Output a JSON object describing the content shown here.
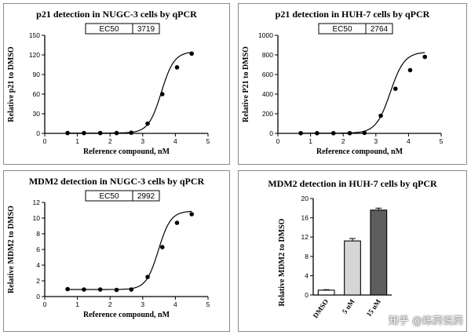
{
  "chart_data": [
    {
      "type": "line",
      "title": "p21 detection in NUGC-3 cells by qPCR",
      "xlabel": "Reference compound, nM",
      "ylabel": "Relative p21 to DMSO",
      "xlim": [
        0,
        5
      ],
      "ylim": [
        0,
        150
      ],
      "xticks": [
        "0",
        "1",
        "2",
        "3",
        "4",
        "5"
      ],
      "yticks": [
        "0",
        "30",
        "60",
        "90",
        "120",
        "150"
      ],
      "ec50_label": "EC50",
      "ec50_value": "3719",
      "x": [
        0.7,
        1.2,
        1.7,
        2.2,
        2.65,
        3.15,
        3.6,
        4.05,
        4.5
      ],
      "values": [
        0.5,
        0.5,
        0.5,
        0.5,
        1,
        15,
        60,
        101,
        122
      ],
      "fit": {
        "bottom": 0.5,
        "top": 125,
        "log_ec50": 3.57,
        "hill": 2.2
      }
    },
    {
      "type": "line",
      "title": "p21 detection in HUH-7 cells by qPCR",
      "xlabel": "Reference compound, nM",
      "ylabel": "Relative P21 to DMSO",
      "xlim": [
        0,
        5
      ],
      "ylim": [
        0,
        1000
      ],
      "xticks": [
        "0",
        "1",
        "2",
        "3",
        "4",
        "5"
      ],
      "yticks": [
        "0",
        "200",
        "400",
        "600",
        "800",
        "1000"
      ],
      "ec50_label": "EC50",
      "ec50_value": "2764",
      "x": [
        0.7,
        1.2,
        1.7,
        2.2,
        2.65,
        3.15,
        3.6,
        4.05,
        4.5
      ],
      "values": [
        2,
        2,
        2,
        2,
        5,
        180,
        455,
        645,
        780
      ],
      "fit": {
        "bottom": 2,
        "top": 830,
        "log_ec50": 3.44,
        "hill": 2.0
      }
    },
    {
      "type": "line",
      "title": "MDM2 detection in NUGC-3 cells by qPCR",
      "xlabel": "Reference compound, nM",
      "ylabel": "Relative MDM2 to DMSO",
      "xlim": [
        0,
        5
      ],
      "ylim": [
        0,
        12
      ],
      "xticks": [
        "0",
        "1",
        "2",
        "3",
        "4",
        "5"
      ],
      "yticks": [
        "0",
        "2",
        "4",
        "6",
        "8",
        "10",
        "12"
      ],
      "ec50_label": "EC50",
      "ec50_value": "2992",
      "x": [
        0.7,
        1.2,
        1.7,
        2.2,
        2.65,
        3.15,
        3.6,
        4.05,
        4.5
      ],
      "values": [
        0.95,
        0.9,
        0.9,
        0.85,
        0.9,
        2.5,
        6.3,
        9.4,
        10.5
      ],
      "fit": {
        "bottom": 0.9,
        "top": 10.9,
        "log_ec50": 3.48,
        "hill": 2.3
      }
    },
    {
      "type": "bar",
      "title": "MDM2 detection in HUH-7 cells by qPCR",
      "ylabel": "Relative MDM2 to DMSO",
      "ylim": [
        0,
        20
      ],
      "yticks": [
        "0",
        "4",
        "8",
        "12",
        "16",
        "20"
      ],
      "categories": [
        "DMSO",
        "5 uM",
        "15 uM"
      ],
      "values": [
        1.0,
        11.2,
        17.6
      ],
      "errors": [
        0.1,
        0.5,
        0.4
      ],
      "colors": [
        "#ffffff",
        "#d6d6d6",
        "#5e5e5e"
      ]
    }
  ],
  "watermark": "知乎 @炼药说药"
}
